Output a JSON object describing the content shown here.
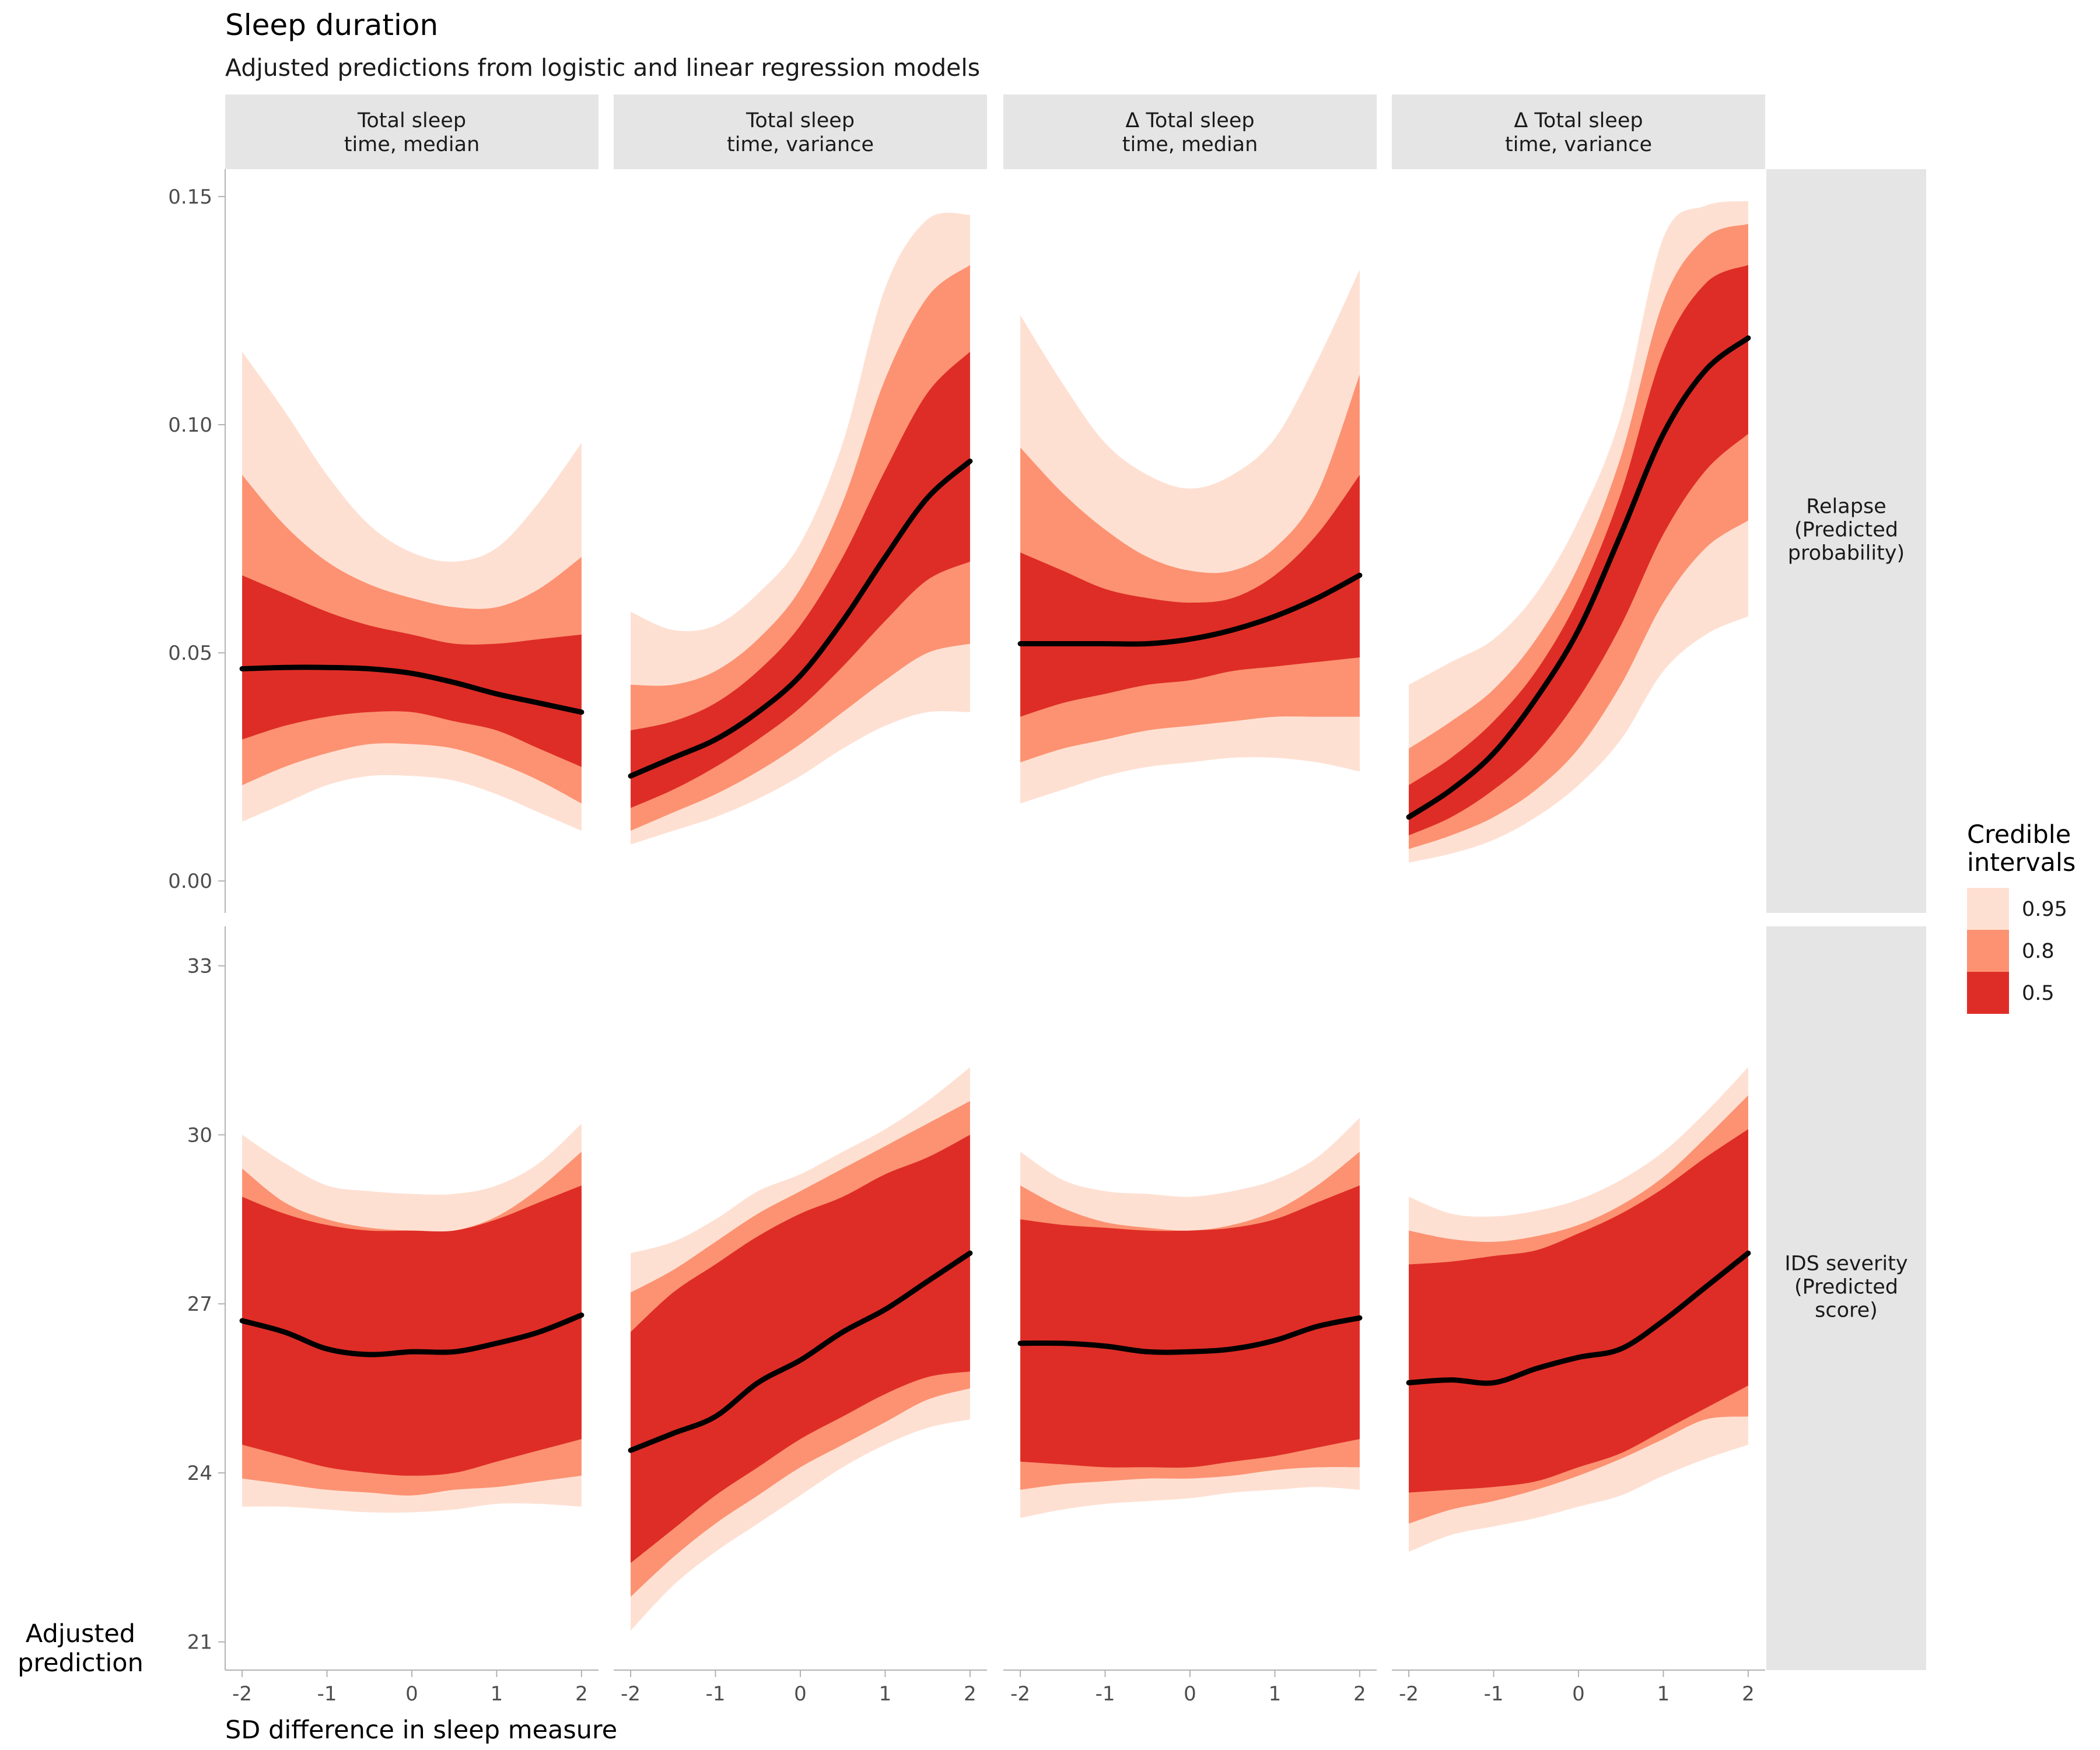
{
  "chart_data": {
    "type": "area",
    "title": "Sleep duration",
    "subtitle": "Adjusted predictions from logistic and linear regression models",
    "xlabel": "SD difference in sleep measure",
    "ylabel": "Adjusted\nprediction",
    "x": [
      -2,
      -1.5,
      -1,
      -0.5,
      0,
      0.5,
      1,
      1.5,
      2
    ],
    "xticks": [
      -2,
      -1,
      0,
      1,
      2
    ],
    "xtick_labels": [
      "-2",
      "-1",
      "0",
      "1",
      "2"
    ],
    "xlim": [
      -2.2,
      2.2
    ],
    "columns": [
      "Total sleep\ntime, median",
      "Total sleep\ntime, variance",
      "Δ Total sleep\ntime, median",
      "Δ Total sleep\ntime, variance"
    ],
    "legend": {
      "title": "Credible\nintervals",
      "position": "right",
      "entries": [
        {
          "label": "0.95",
          "color": "#fee0d2"
        },
        {
          "label": "0.8",
          "color": "#fc9272"
        },
        {
          "label": "0.5",
          "color": "#de2d26"
        }
      ]
    },
    "line_color": "#000000",
    "rows": [
      {
        "name": "Relapse\n\n(Predicted\nprobability)",
        "ylim": [
          -0.007,
          0.156
        ],
        "yticks": [
          0.0,
          0.05,
          0.1,
          0.15
        ],
        "ytick_labels": [
          "0.00",
          "0.05",
          "0.10",
          "0.15"
        ],
        "panels": [
          {
            "median": [
              0.0465,
              0.0468,
              0.0468,
              0.0465,
              0.0455,
              0.0435,
              0.041,
              0.039,
              0.037
            ],
            "ci95": {
              "lower": [
                0.013,
                0.017,
                0.021,
                0.023,
                0.023,
                0.022,
                0.019,
                0.015,
                0.011
              ],
              "upper": [
                0.116,
                0.103,
                0.089,
                0.078,
                0.072,
                0.07,
                0.073,
                0.083,
                0.096
              ]
            },
            "ci80": {
              "lower": [
                0.021,
                0.025,
                0.028,
                0.03,
                0.03,
                0.029,
                0.026,
                0.022,
                0.017
              ],
              "upper": [
                0.089,
                0.078,
                0.07,
                0.065,
                0.062,
                0.06,
                0.06,
                0.064,
                0.071
              ]
            },
            "ci50": {
              "lower": [
                0.031,
                0.034,
                0.036,
                0.037,
                0.037,
                0.035,
                0.033,
                0.029,
                0.025
              ],
              "upper": [
                0.067,
                0.063,
                0.059,
                0.056,
                0.054,
                0.052,
                0.052,
                0.053,
                0.054
              ]
            }
          },
          {
            "median": [
              0.023,
              0.027,
              0.031,
              0.037,
              0.045,
              0.057,
              0.071,
              0.084,
              0.092
            ],
            "ci95": {
              "lower": [
                0.008,
                0.011,
                0.014,
                0.018,
                0.023,
                0.029,
                0.034,
                0.037,
                0.037
              ],
              "upper": [
                0.059,
                0.055,
                0.056,
                0.063,
                0.074,
                0.096,
                0.13,
                0.145,
                0.146
              ]
            },
            "ci80": {
              "lower": [
                0.011,
                0.015,
                0.019,
                0.024,
                0.03,
                0.037,
                0.044,
                0.05,
                0.052
              ],
              "upper": [
                0.043,
                0.043,
                0.046,
                0.053,
                0.064,
                0.083,
                0.11,
                0.128,
                0.135
              ]
            },
            "ci50": {
              "lower": [
                0.016,
                0.02,
                0.025,
                0.031,
                0.038,
                0.047,
                0.057,
                0.066,
                0.07
              ],
              "upper": [
                0.033,
                0.035,
                0.039,
                0.046,
                0.056,
                0.071,
                0.09,
                0.107,
                0.116
              ]
            }
          },
          {
            "median": [
              0.052,
              0.052,
              0.052,
              0.052,
              0.053,
              0.055,
              0.058,
              0.062,
              0.067
            ],
            "ci95": {
              "lower": [
                0.017,
                0.02,
                0.023,
                0.025,
                0.026,
                0.027,
                0.027,
                0.026,
                0.024
              ],
              "upper": [
                0.124,
                0.109,
                0.096,
                0.089,
                0.086,
                0.089,
                0.097,
                0.114,
                0.134
              ]
            },
            "ci80": {
              "lower": [
                0.026,
                0.029,
                0.031,
                0.033,
                0.034,
                0.035,
                0.036,
                0.036,
                0.036
              ],
              "upper": [
                0.095,
                0.085,
                0.077,
                0.071,
                0.068,
                0.068,
                0.073,
                0.085,
                0.111
              ]
            },
            "ci50": {
              "lower": [
                0.036,
                0.039,
                0.041,
                0.043,
                0.044,
                0.046,
                0.047,
                0.048,
                0.049
              ],
              "upper": [
                0.072,
                0.068,
                0.064,
                0.062,
                0.061,
                0.062,
                0.067,
                0.076,
                0.089
              ]
            }
          },
          {
            "median": [
              0.014,
              0.02,
              0.028,
              0.04,
              0.055,
              0.076,
              0.098,
              0.112,
              0.119
            ],
            "ci95": {
              "lower": [
                0.004,
                0.006,
                0.009,
                0.014,
                0.021,
                0.031,
                0.046,
                0.054,
                0.058
              ],
              "upper": [
                0.043,
                0.048,
                0.053,
                0.063,
                0.079,
                0.102,
                0.141,
                0.148,
                0.149
              ]
            },
            "ci80": {
              "lower": [
                0.007,
                0.01,
                0.014,
                0.02,
                0.029,
                0.043,
                0.061,
                0.073,
                0.079
              ],
              "upper": [
                0.029,
                0.035,
                0.042,
                0.053,
                0.069,
                0.093,
                0.127,
                0.141,
                0.144
              ]
            },
            "ci50": {
              "lower": [
                0.01,
                0.014,
                0.02,
                0.028,
                0.04,
                0.056,
                0.076,
                0.09,
                0.098
              ],
              "upper": [
                0.021,
                0.027,
                0.035,
                0.046,
                0.062,
                0.085,
                0.116,
                0.131,
                0.135
              ]
            }
          }
        ]
      },
      {
        "name": "IDS severity\n\n(Predicted\nscore)",
        "ylim": [
          20.5,
          33.7
        ],
        "yticks": [
          21,
          24,
          27,
          30,
          33
        ],
        "ytick_labels": [
          "21",
          "24",
          "27",
          "30",
          "33"
        ],
        "panels": [
          {
            "median": [
              26.7,
              26.5,
              26.2,
              26.1,
              26.15,
              26.15,
              26.3,
              26.5,
              26.8
            ],
            "ci95": {
              "lower": [
                23.4,
                23.4,
                23.35,
                23.3,
                23.3,
                23.35,
                23.45,
                23.45,
                23.4
              ],
              "upper": [
                30.0,
                29.5,
                29.1,
                29.0,
                28.95,
                28.95,
                29.1,
                29.5,
                30.2
              ]
            },
            "ci80": {
              "lower": [
                23.9,
                23.8,
                23.7,
                23.65,
                23.6,
                23.7,
                23.75,
                23.85,
                23.95
              ],
              "upper": [
                29.4,
                28.8,
                28.5,
                28.35,
                28.3,
                28.3,
                28.55,
                29.05,
                29.7
              ]
            },
            "ci50": {
              "lower": [
                24.5,
                24.3,
                24.1,
                24.0,
                23.95,
                24.0,
                24.2,
                24.4,
                24.6
              ],
              "upper": [
                28.9,
                28.6,
                28.4,
                28.3,
                28.3,
                28.3,
                28.5,
                28.8,
                29.1
              ]
            }
          },
          {
            "median": [
              24.4,
              24.7,
              25.0,
              25.6,
              26.0,
              26.5,
              26.9,
              27.4,
              27.9
            ],
            "ci95": {
              "lower": [
                21.2,
                22.0,
                22.6,
                23.1,
                23.6,
                24.1,
                24.5,
                24.8,
                24.95
              ],
              "upper": [
                27.9,
                28.1,
                28.5,
                29.0,
                29.3,
                29.7,
                30.1,
                30.6,
                31.2
              ]
            },
            "ci80": {
              "lower": [
                21.8,
                22.5,
                23.1,
                23.6,
                24.1,
                24.5,
                24.9,
                25.3,
                25.5
              ],
              "upper": [
                27.2,
                27.6,
                28.1,
                28.6,
                29.0,
                29.4,
                29.8,
                30.2,
                30.6
              ]
            },
            "ci50": {
              "lower": [
                22.4,
                23.0,
                23.6,
                24.1,
                24.6,
                25.0,
                25.4,
                25.7,
                25.8
              ],
              "upper": [
                26.5,
                27.2,
                27.7,
                28.2,
                28.6,
                28.9,
                29.3,
                29.6,
                30.0
              ]
            }
          },
          {
            "median": [
              26.3,
              26.3,
              26.25,
              26.15,
              26.15,
              26.2,
              26.35,
              26.6,
              26.75
            ],
            "ci95": {
              "lower": [
                23.2,
                23.35,
                23.45,
                23.5,
                23.55,
                23.65,
                23.7,
                23.75,
                23.7
              ],
              "upper": [
                29.7,
                29.2,
                29.0,
                28.95,
                28.9,
                29.0,
                29.2,
                29.6,
                30.3
              ]
            },
            "ci80": {
              "lower": [
                23.7,
                23.8,
                23.85,
                23.9,
                23.9,
                23.95,
                24.05,
                24.1,
                24.1
              ],
              "upper": [
                29.1,
                28.7,
                28.45,
                28.35,
                28.3,
                28.4,
                28.65,
                29.1,
                29.7
              ]
            },
            "ci50": {
              "lower": [
                24.2,
                24.15,
                24.1,
                24.1,
                24.1,
                24.2,
                24.3,
                24.45,
                24.6
              ],
              "upper": [
                28.5,
                28.4,
                28.35,
                28.3,
                28.3,
                28.35,
                28.5,
                28.8,
                29.1
              ]
            }
          },
          {
            "median": [
              25.6,
              25.65,
              25.6,
              25.85,
              26.05,
              26.2,
              26.7,
              27.3,
              27.9
            ],
            "ci95": {
              "lower": [
                22.6,
                22.9,
                23.05,
                23.2,
                23.4,
                23.6,
                23.95,
                24.25,
                24.5
              ],
              "upper": [
                28.9,
                28.6,
                28.55,
                28.65,
                28.85,
                29.2,
                29.7,
                30.4,
                31.2
              ]
            },
            "ci80": {
              "lower": [
                23.1,
                23.35,
                23.5,
                23.7,
                23.95,
                24.25,
                24.6,
                24.95,
                25.0
              ],
              "upper": [
                28.3,
                28.15,
                28.1,
                28.2,
                28.4,
                28.75,
                29.25,
                29.95,
                30.7
              ]
            },
            "ci50": {
              "lower": [
                23.65,
                23.7,
                23.75,
                23.85,
                24.1,
                24.35,
                24.75,
                25.15,
                25.55
              ],
              "upper": [
                27.7,
                27.75,
                27.85,
                27.95,
                28.25,
                28.6,
                29.05,
                29.6,
                30.1
              ]
            }
          }
        ]
      }
    ]
  }
}
